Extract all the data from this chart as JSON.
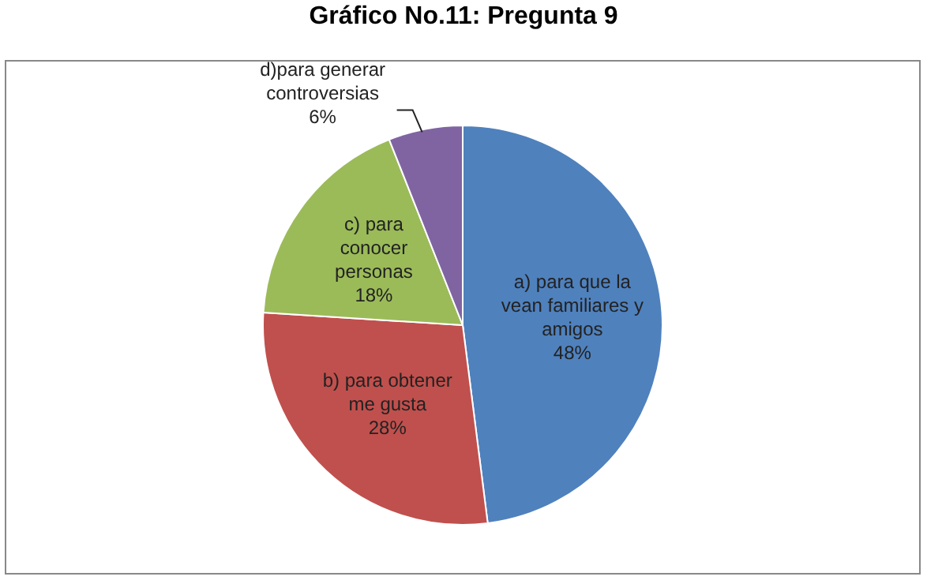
{
  "chart_data": {
    "type": "pie",
    "title": "Gráfico No.11: Pregunta 9",
    "categories": [
      "a) para que la vean familiares y amigos",
      "b) para obtener me gusta",
      "c) para conocer personas",
      "d)para generar controversias"
    ],
    "values": [
      48,
      28,
      18,
      6
    ],
    "value_labels": [
      "48%",
      "28%",
      "18%",
      "6%"
    ],
    "colors": [
      "#4f81bd",
      "#c0504d",
      "#9bbb59",
      "#8064a2"
    ],
    "legend": false
  }
}
